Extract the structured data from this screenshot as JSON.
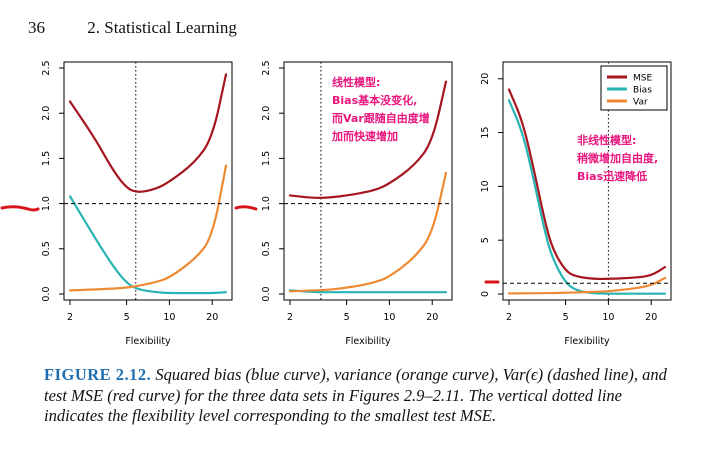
{
  "page": {
    "number": "36",
    "section": "2. Statistical Learning"
  },
  "colors": {
    "mse": "#a6161e",
    "bias": "#2ab3b4",
    "var": "#ee8a33",
    "annotation": "#e8167d",
    "caption_label": "#1f6fb0",
    "pen": "#d9141b"
  },
  "panels": [
    {
      "xticks": [
        2,
        5,
        10,
        20
      ],
      "yticks": [
        "0.0",
        "0.5",
        "1.0",
        "1.5",
        "2.0",
        "2.5"
      ],
      "xlabel": "Flexibility",
      "optimum_x": 5.8,
      "irreducible": 1.0,
      "annotation_lines": []
    },
    {
      "xticks": [
        2,
        5,
        10,
        20
      ],
      "yticks": [
        "0.0",
        "0.5",
        "1.0",
        "1.5",
        "2.0",
        "2.5"
      ],
      "xlabel": "Flexibility",
      "optimum_x": 3.3,
      "irreducible": 1.0,
      "annotation_lines": [
        "线性模型:",
        "Bias基本没变化,",
        "而Var跟随自由度增",
        "加而快速增加"
      ]
    },
    {
      "xticks": [
        2,
        5,
        10,
        20
      ],
      "yticks": [
        "0",
        "5",
        "10",
        "15",
        "20"
      ],
      "xlabel": "Flexibility",
      "optimum_x": 10,
      "irreducible": 1.0,
      "legend": [
        "MSE",
        "Bias",
        "Var"
      ],
      "annotation_lines": [
        "非线性模型:",
        "稍微增加自由度,",
        "Bias迅速降低"
      ]
    }
  ],
  "chart_data": [
    {
      "type": "line",
      "xlabel": "Flexibility",
      "ylim": [
        0,
        2.5
      ],
      "series": [
        {
          "name": "MSE",
          "x": [
            2,
            3,
            4,
            5,
            6,
            8,
            10,
            15,
            20,
            25
          ],
          "values": [
            2.13,
            1.72,
            1.37,
            1.17,
            1.12,
            1.16,
            1.24,
            1.45,
            1.72,
            2.43
          ]
        },
        {
          "name": "Bias",
          "x": [
            2,
            3,
            4,
            5,
            6,
            8,
            10,
            15,
            20,
            25
          ],
          "values": [
            1.08,
            0.62,
            0.31,
            0.12,
            0.05,
            0.02,
            0.01,
            0.01,
            0.01,
            0.02
          ]
        },
        {
          "name": "Var",
          "x": [
            2,
            3,
            4,
            5,
            6,
            8,
            10,
            15,
            20,
            25
          ],
          "values": [
            0.04,
            0.05,
            0.06,
            0.07,
            0.09,
            0.13,
            0.18,
            0.38,
            0.62,
            1.42
          ]
        },
        {
          "name": "Var(ε)",
          "x": [
            2,
            25
          ],
          "values": [
            1.0,
            1.0
          ]
        }
      ]
    },
    {
      "type": "line",
      "xlabel": "Flexibility",
      "ylim": [
        0,
        2.5
      ],
      "series": [
        {
          "name": "MSE",
          "x": [
            2,
            3,
            4,
            5,
            6,
            8,
            10,
            15,
            20,
            25
          ],
          "values": [
            1.09,
            1.06,
            1.07,
            1.09,
            1.11,
            1.15,
            1.22,
            1.42,
            1.68,
            2.35
          ]
        },
        {
          "name": "Bias",
          "x": [
            2,
            3,
            4,
            5,
            6,
            8,
            10,
            15,
            20,
            25
          ],
          "values": [
            0.04,
            0.02,
            0.02,
            0.02,
            0.02,
            0.02,
            0.02,
            0.02,
            0.02,
            0.02
          ]
        },
        {
          "name": "Var",
          "x": [
            2,
            3,
            4,
            5,
            6,
            8,
            10,
            15,
            20,
            25
          ],
          "values": [
            0.03,
            0.04,
            0.05,
            0.07,
            0.09,
            0.13,
            0.19,
            0.4,
            0.66,
            1.34
          ]
        },
        {
          "name": "Var(ε)",
          "x": [
            2,
            25
          ],
          "values": [
            1.0,
            1.0
          ]
        }
      ]
    },
    {
      "type": "line",
      "xlabel": "Flexibility",
      "ylim": [
        0,
        21
      ],
      "legend": [
        "MSE",
        "Bias",
        "Var"
      ],
      "series": [
        {
          "name": "MSE",
          "x": [
            2,
            2.5,
            3,
            3.5,
            4,
            5,
            6,
            8,
            10,
            15,
            20,
            25
          ],
          "values": [
            19.0,
            16.0,
            11.5,
            7.3,
            4.3,
            2.1,
            1.6,
            1.4,
            1.4,
            1.5,
            1.7,
            2.5
          ]
        },
        {
          "name": "Bias",
          "x": [
            2,
            2.5,
            3,
            3.5,
            4,
            5,
            6,
            8,
            10,
            15,
            20,
            25
          ],
          "values": [
            18.0,
            15.0,
            10.5,
            6.3,
            3.4,
            1.0,
            0.3,
            0.05,
            0.03,
            0.03,
            0.03,
            0.03
          ]
        },
        {
          "name": "Var",
          "x": [
            2,
            2.5,
            3,
            3.5,
            4,
            5,
            6,
            8,
            10,
            15,
            20,
            25
          ],
          "values": [
            0.05,
            0.06,
            0.07,
            0.08,
            0.09,
            0.12,
            0.15,
            0.2,
            0.25,
            0.5,
            0.8,
            1.5
          ]
        },
        {
          "name": "Var(ε)",
          "x": [
            2,
            25
          ],
          "values": [
            1.0,
            1.0
          ]
        }
      ]
    }
  ],
  "caption": {
    "label": "FIGURE 2.12.",
    "text": "Squared bias (blue curve), variance (orange curve), Var(ϵ) (dashed line), and test MSE (red curve) for the three data sets in Figures 2.9–2.11. The vertical dotted line indicates the flexibility level corresponding to the smallest test MSE."
  }
}
